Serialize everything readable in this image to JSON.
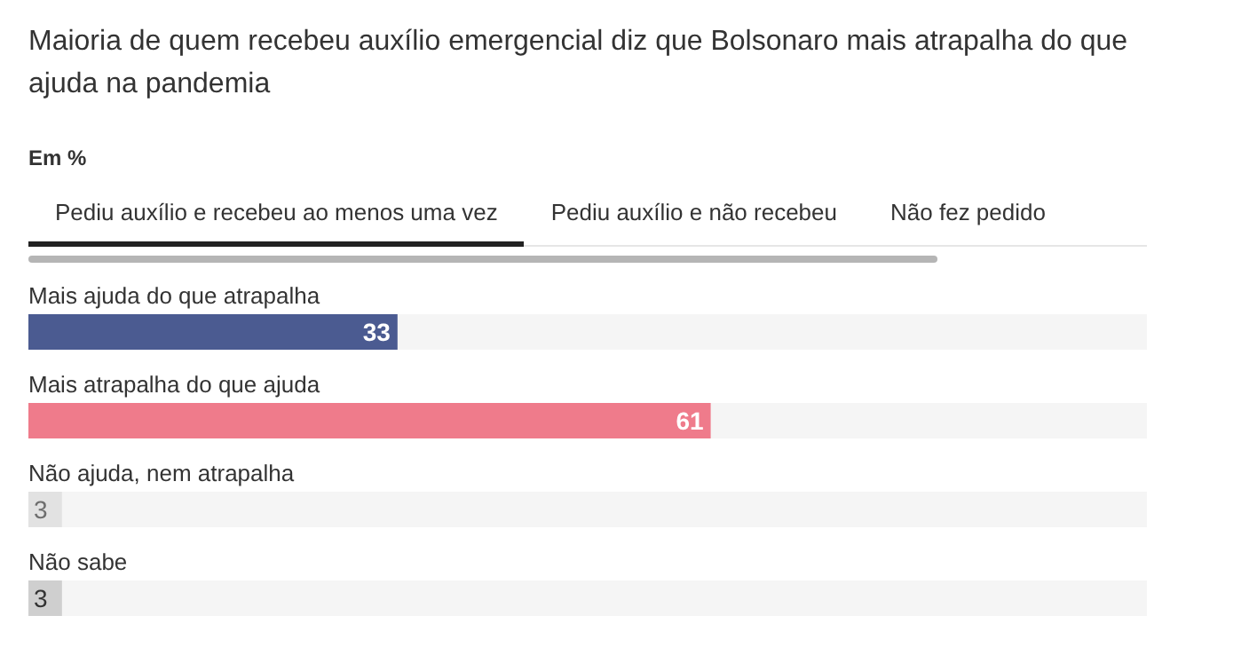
{
  "chart_data": {
    "type": "bar",
    "orientation": "horizontal",
    "title": "Maioria de quem recebeu auxílio emergencial diz que Bolsonaro mais atrapalha do que ajuda na pandemia",
    "subtitle": "Em %",
    "annotations": [
      "Pediu auxílio e recebeu ao menos uma vez",
      "Pediu auxílio e não recebeu",
      "Não fez pedido"
    ],
    "categories": [
      "Mais ajuda do que atrapalha",
      "Mais atrapalha do que ajuda",
      "Não ajuda, nem atrapalha",
      "Não sabe"
    ],
    "values": [
      33,
      61,
      3,
      3
    ],
    "colors": [
      "#4b5b91",
      "#ef7b8b",
      "#e2e2e2",
      "#cfcfcf"
    ],
    "xlim": [
      0,
      100
    ],
    "data_labels": true,
    "tick_labels": false
  }
}
